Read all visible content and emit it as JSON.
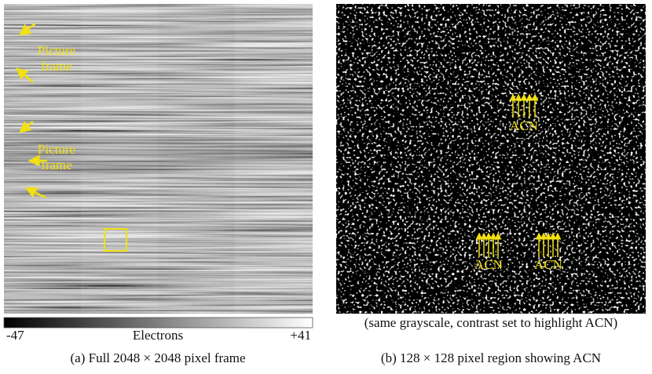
{
  "left_panel": {
    "annotations": [
      [
        "Picture",
        "frame"
      ],
      [
        "Picture",
        "frame"
      ]
    ],
    "colorbar": {
      "min_label": "-47",
      "label": "Electrons",
      "max_label": "+41"
    },
    "caption": "(a) Full 2048 × 2048 pixel frame"
  },
  "right_panel": {
    "note": "(same grayscale, contrast set to highlight ACN)",
    "annotations": [
      "ACN",
      "ACN",
      "ACN"
    ],
    "caption": "(b) 128 × 128 pixel region showing ACN"
  }
}
